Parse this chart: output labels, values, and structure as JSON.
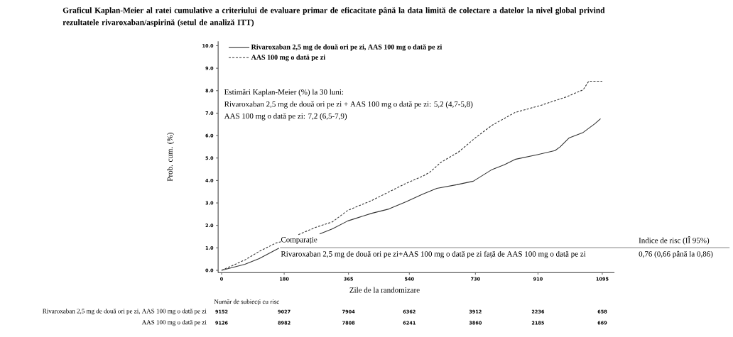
{
  "chart_data": {
    "type": "line",
    "title": "Graficul Kaplan-Meier al ratei cumulative a criteriului de evaluare primar de eficacitate până la data limită de colectare a datelor la nivel global privind rezultatele rivaroxaban/aspirină (setul de analiză ITT)",
    "xlabel": "Zile de la randomizare",
    "ylabel": "Prob. cum. (%)",
    "xlim": [
      -10,
      1130
    ],
    "ylim": [
      -0.1,
      10.2
    ],
    "xticks": [
      0,
      180,
      365,
      540,
      730,
      910,
      1095
    ],
    "yticks": [
      {
        "value": 0,
        "label": "0.0"
      },
      {
        "value": 1,
        "label": "1.0"
      },
      {
        "value": 2,
        "label": "2.0"
      },
      {
        "value": 3,
        "label": "3.0"
      },
      {
        "value": 4,
        "label": "4.0"
      },
      {
        "value": 5,
        "label": "5.0"
      },
      {
        "value": 6,
        "label": "6.0"
      },
      {
        "value": 7,
        "label": "7.0"
      },
      {
        "value": 8,
        "label": "8.0"
      },
      {
        "value": 9,
        "label": "9.0"
      },
      {
        "value": 10,
        "label": "10.0"
      }
    ],
    "legend": "top left",
    "marker": "none",
    "series": [
      {
        "name": "Rivaroxaban 2,5 mg de două ori pe zi, AAS 100 mg o dată pe zi",
        "color": "#333333",
        "line_style": "solid",
        "x": [
          0,
          67,
          108,
          165,
          230,
          282,
          319,
          363,
          432,
          481,
          530,
          578,
          619,
          676,
          724,
          778,
          813,
          844,
          911,
          959,
          974,
          999,
          1040,
          1073,
          1090
        ],
        "values": [
          0,
          0.27,
          0.52,
          0.99,
          null,
          1.62,
          1.85,
          2.2,
          2.54,
          2.73,
          3.05,
          3.39,
          3.65,
          3.81,
          3.97,
          4.49,
          4.7,
          4.94,
          5.16,
          5.33,
          5.5,
          5.89,
          6.14,
          6.52,
          6.75
        ]
      },
      {
        "name": "AAS 100 mg o dată pe zi",
        "color": "#333333",
        "line_style": "dashed",
        "x": [
          0,
          67,
          108,
          157,
          173,
          195,
          221,
          270,
          319,
          363,
          432,
          481,
          530,
          578,
          599,
          631,
          680,
          729,
          778,
          844,
          917,
          991,
          1040,
          1056,
          1095
        ],
        "values": [
          0,
          0.46,
          0.84,
          1.22,
          1.28,
          null,
          1.59,
          1.91,
          2.16,
          2.67,
          3.11,
          3.49,
          3.87,
          4.19,
          4.37,
          4.81,
          5.25,
          5.89,
          6.46,
          7.03,
          7.34,
          7.72,
          8.04,
          8.42,
          8.42
        ]
      }
    ],
    "annotations": [
      "Estimări Kaplan-Meier (%) la 30 luni:",
      "Rivaroxaban 2,5 mg de două ori pe zi + AAS 100 mg o dată pe zi: 5,2 (4,7-5,8)",
      "AAS 100 mg o dată pe zi: 7,2 (6,5-7,9)",
      "Comparație",
      "Indice de risc (IÎ 95%)",
      "Rivaroxaban 2,5 mg de două ori pe zi+AAS 100 mg o dată pe zi față de AAS 100 mg o dată pe zi",
      "0,76 (0,66 până la 0,86)",
      "Număr de subiecți cu risc",
      "Rivaroxaban 2,5 mg de două ori pe zi, AAS 100 mg o dată pe zi",
      "AAS 100 mg o dată pe zi",
      "9152",
      "9027",
      "7904",
      "6362",
      "3912",
      "2236",
      "658",
      "9126",
      "8982",
      "7808",
      "6241",
      "3860",
      "2185",
      "669"
    ]
  }
}
